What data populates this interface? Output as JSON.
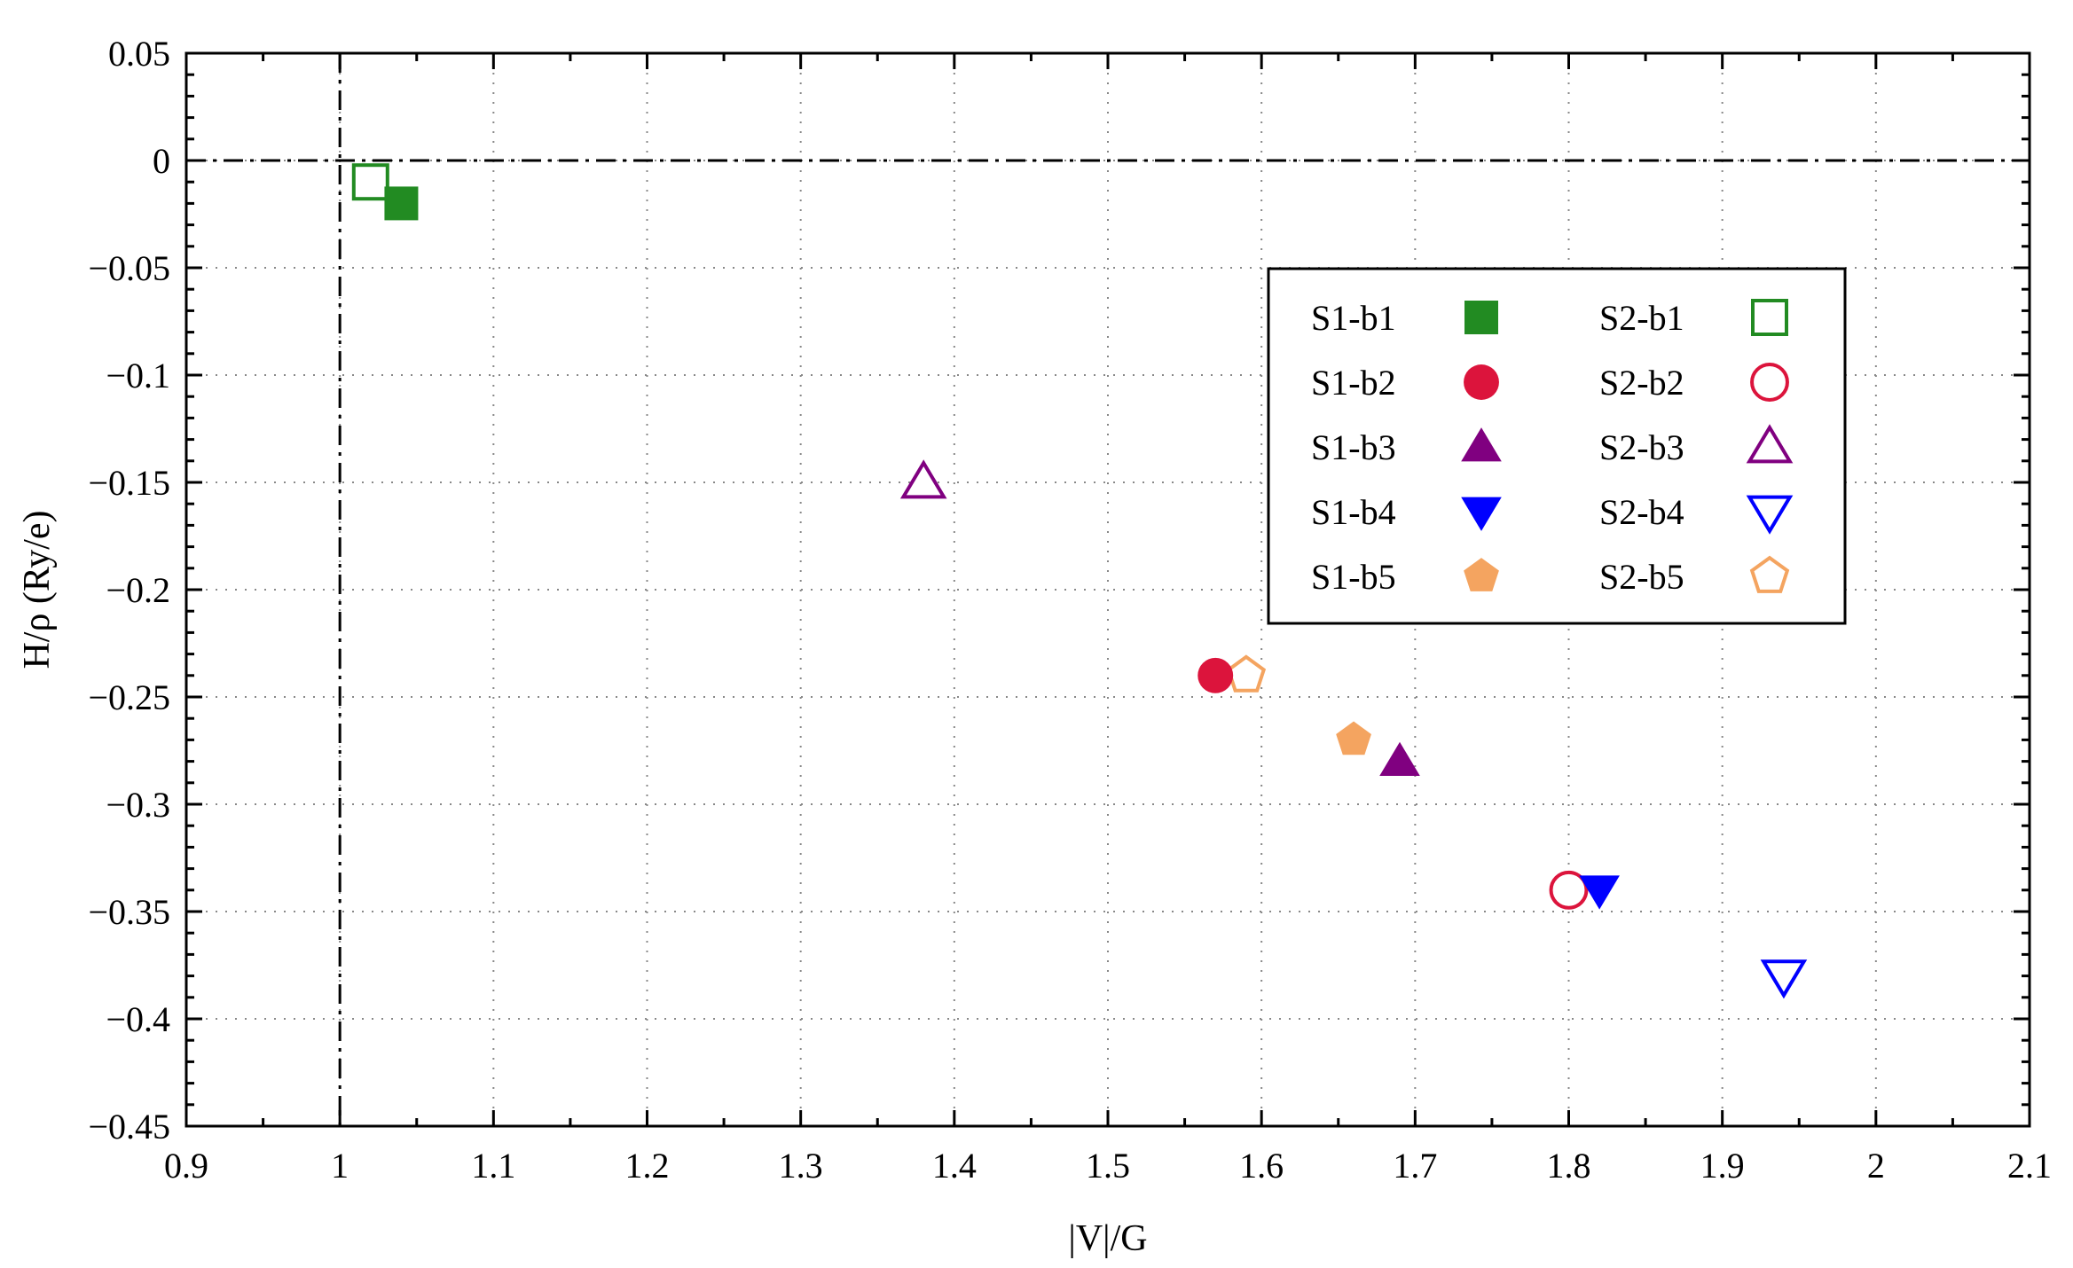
{
  "chart_data": {
    "type": "scatter",
    "title": "",
    "xlabel": "|V|/G",
    "ylabel": "H/ρ (Ry/e)",
    "xlim": [
      0.9,
      2.1
    ],
    "ylim": [
      -0.45,
      0.05
    ],
    "x_ticks": [
      0.9,
      1.0,
      1.1,
      1.2,
      1.3,
      1.4,
      1.5,
      1.6,
      1.7,
      1.8,
      1.9,
      2.0,
      2.1
    ],
    "x_tick_labels": [
      "0.9",
      "1",
      "1.1",
      "1.2",
      "1.3",
      "1.4",
      "1.5",
      "1.6",
      "1.7",
      "1.8",
      "1.9",
      "2",
      "2.1"
    ],
    "y_ticks": [
      0.05,
      0.0,
      -0.05,
      -0.1,
      -0.15,
      -0.2,
      -0.25,
      -0.3,
      -0.35,
      -0.4,
      -0.45
    ],
    "y_tick_labels": [
      "0.05",
      "0",
      "−0.05",
      "−0.1",
      "−0.15",
      "−0.2",
      "−0.25",
      "−0.3",
      "−0.35",
      "−0.4",
      "−0.45"
    ],
    "grid": true,
    "reference_lines": [
      {
        "orientation": "vertical",
        "value": 1.0,
        "style": "dash-dot"
      },
      {
        "orientation": "horizontal",
        "value": 0.0,
        "style": "dash-dot"
      }
    ],
    "legend_position": "upper-right",
    "series": [
      {
        "name": "S1-b1",
        "marker": "square",
        "filled": true,
        "color": "#228b22",
        "x": [
          1.04
        ],
        "y": [
          -0.02
        ]
      },
      {
        "name": "S1-b2",
        "marker": "circle",
        "filled": true,
        "color": "#dc143c",
        "x": [
          1.57
        ],
        "y": [
          -0.24
        ]
      },
      {
        "name": "S1-b3",
        "marker": "triangle-up",
        "filled": true,
        "color": "#800080",
        "x": [
          1.69
        ],
        "y": [
          -0.28
        ]
      },
      {
        "name": "S1-b4",
        "marker": "triangle-down",
        "filled": true,
        "color": "#0000ff",
        "x": [
          1.82
        ],
        "y": [
          -0.34
        ]
      },
      {
        "name": "S1-b5",
        "marker": "pentagon",
        "filled": true,
        "color": "#f4a460",
        "x": [
          1.66
        ],
        "y": [
          -0.27
        ]
      },
      {
        "name": "S2-b1",
        "marker": "square",
        "filled": false,
        "color": "#228b22",
        "x": [
          1.02
        ],
        "y": [
          -0.01
        ]
      },
      {
        "name": "S2-b2",
        "marker": "circle",
        "filled": false,
        "color": "#dc143c",
        "x": [
          1.8
        ],
        "y": [
          -0.34
        ]
      },
      {
        "name": "S2-b3",
        "marker": "triangle-up",
        "filled": false,
        "color": "#800080",
        "x": [
          1.38
        ],
        "y": [
          -0.15
        ]
      },
      {
        "name": "S2-b4",
        "marker": "triangle-down",
        "filled": false,
        "color": "#0000ff",
        "x": [
          1.94
        ],
        "y": [
          -0.38
        ]
      },
      {
        "name": "S2-b5",
        "marker": "pentagon",
        "filled": false,
        "color": "#f4a460",
        "x": [
          1.59
        ],
        "y": [
          -0.24
        ]
      }
    ]
  }
}
